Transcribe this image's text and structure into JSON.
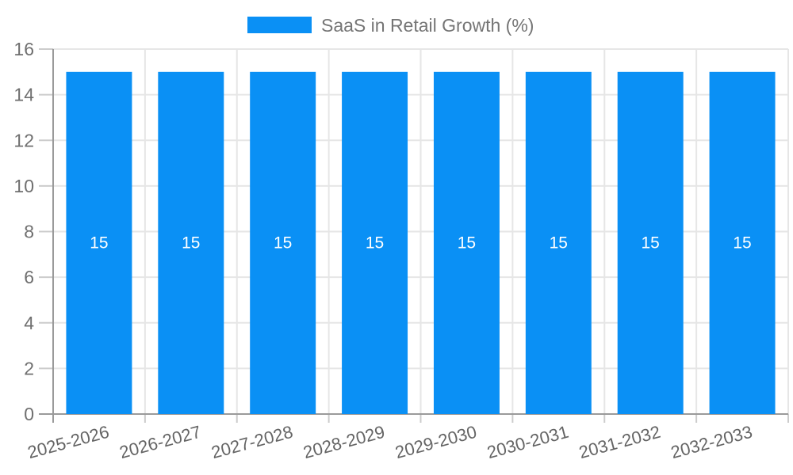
{
  "chart_data": {
    "type": "bar",
    "title": "",
    "legend": {
      "label": "SaaS in Retail Growth (%)",
      "position": "top"
    },
    "categories": [
      "2025-2026",
      "2026-2027",
      "2027-2028",
      "2028-2029",
      "2029-2030",
      "2030-2031",
      "2031-2032",
      "2032-2033"
    ],
    "series": [
      {
        "name": "SaaS in Retail Growth (%)",
        "values": [
          15,
          15,
          15,
          15,
          15,
          15,
          15,
          15
        ]
      }
    ],
    "bar_value_labels": [
      "15",
      "15",
      "15",
      "15",
      "15",
      "15",
      "15",
      "15"
    ],
    "show_values": true,
    "xlabel": "",
    "ylabel": "",
    "ylim": [
      0,
      16
    ],
    "yticks": [
      0,
      2,
      4,
      6,
      8,
      10,
      12,
      14,
      16
    ],
    "grid": true,
    "x_label_rotation_deg": -15
  },
  "colors": {
    "bar": "#0a90f5",
    "grid": "#e6e6e6",
    "axis": "#9a9a9a",
    "tick": "#cccccc",
    "ytick_label": "#6f6f6f",
    "xtick_label": "#646464",
    "bar_label": "#ffffff",
    "legend_text": "#757575",
    "background": "#ffffff"
  }
}
